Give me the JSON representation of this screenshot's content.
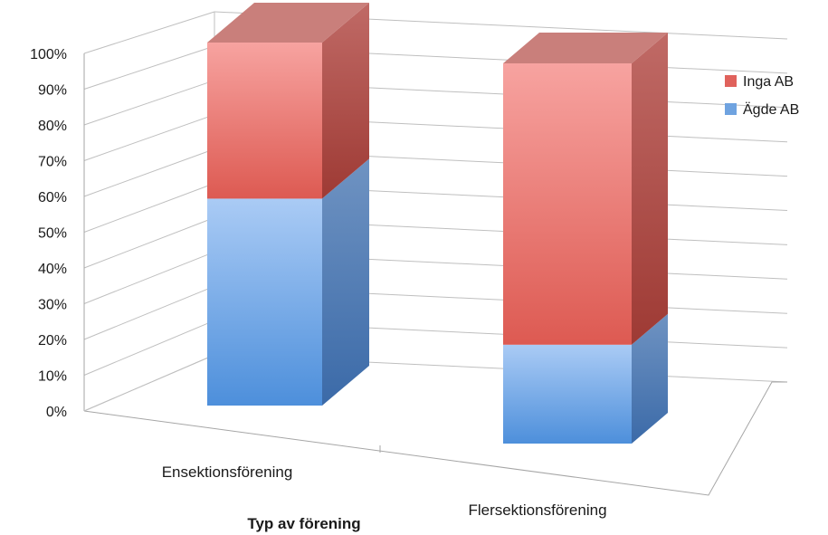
{
  "chart_data": {
    "type": "bar",
    "stacked": true,
    "three_d": true,
    "title": "",
    "xlabel": "Typ av förening",
    "ylabel": "",
    "categories": [
      "Ensektionsförening",
      "Flersektionsförening"
    ],
    "series": [
      {
        "name": "Ägde AB",
        "values": [
          57,
          26
        ],
        "color": "#6fa3e0"
      },
      {
        "name": "Inga AB",
        "values": [
          43,
          74
        ],
        "color": "#e0625c"
      }
    ],
    "ylim": [
      0,
      100
    ],
    "yticks": [
      "0%",
      "10%",
      "20%",
      "30%",
      "40%",
      "50%",
      "60%",
      "70%",
      "80%",
      "90%",
      "100%"
    ],
    "grid": true,
    "legend_position": "right",
    "legend_order": [
      "Inga AB",
      "Ägde AB"
    ]
  }
}
